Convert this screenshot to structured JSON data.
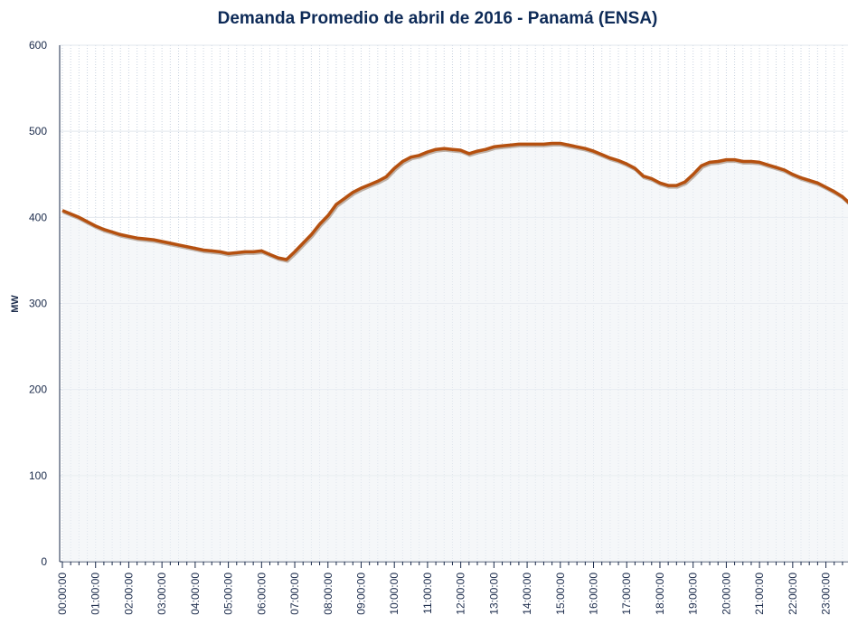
{
  "chart_data": {
    "type": "line",
    "title": "Demanda Promedio de abril de 2016 - Panamá (ENSA)",
    "y_label": "MW",
    "categories": [
      "00:00:00",
      null,
      null,
      null,
      "01:00:00",
      null,
      null,
      null,
      "02:00:00",
      null,
      null,
      null,
      "03:00:00",
      null,
      null,
      null,
      "04:00:00",
      null,
      null,
      null,
      "05:00:00",
      null,
      null,
      null,
      "06:00:00",
      null,
      null,
      null,
      "07:00:00",
      null,
      null,
      null,
      "08:00:00",
      null,
      null,
      null,
      "09:00:00",
      null,
      null,
      null,
      "10:00:00",
      null,
      null,
      null,
      "11:00:00",
      null,
      null,
      null,
      "12:00:00",
      null,
      null,
      null,
      "13:00:00",
      null,
      null,
      null,
      "14:00:00",
      null,
      null,
      null,
      "15:00:00",
      null,
      null,
      null,
      "16:00:00",
      null,
      null,
      null,
      "17:00:00",
      null,
      null,
      null,
      "18:00:00",
      null,
      null,
      null,
      "19:00:00",
      null,
      null,
      null,
      "20:00:00",
      null,
      null,
      null,
      "21:00:00",
      null,
      null,
      null,
      "22:00:00",
      null,
      null,
      null,
      "23:00:00",
      null,
      null,
      null
    ],
    "values": [
      408,
      404,
      400,
      395,
      390,
      386,
      383,
      380,
      378,
      376,
      375,
      374,
      372,
      370,
      368,
      366,
      364,
      362,
      361,
      360,
      358,
      359,
      360,
      360,
      361,
      357,
      353,
      351,
      360,
      370,
      380,
      392,
      402,
      415,
      422,
      429,
      434,
      438,
      442,
      447,
      457,
      465,
      470,
      472,
      476,
      479,
      480,
      479,
      478,
      474,
      477,
      479,
      482,
      483,
      484,
      485,
      485,
      485,
      485,
      486,
      486,
      484,
      482,
      480,
      477,
      473,
      469,
      466,
      462,
      457,
      448,
      445,
      440,
      437,
      437,
      441,
      450,
      460,
      464,
      465,
      467,
      467,
      465,
      465,
      464,
      461,
      458,
      455,
      450,
      446,
      443,
      440,
      435,
      430,
      424,
      415
    ],
    "color": "#b5500f",
    "ylim": [
      0,
      600
    ],
    "yticks": [
      0,
      100,
      200,
      300,
      400,
      500,
      600
    ],
    "grid": true
  }
}
